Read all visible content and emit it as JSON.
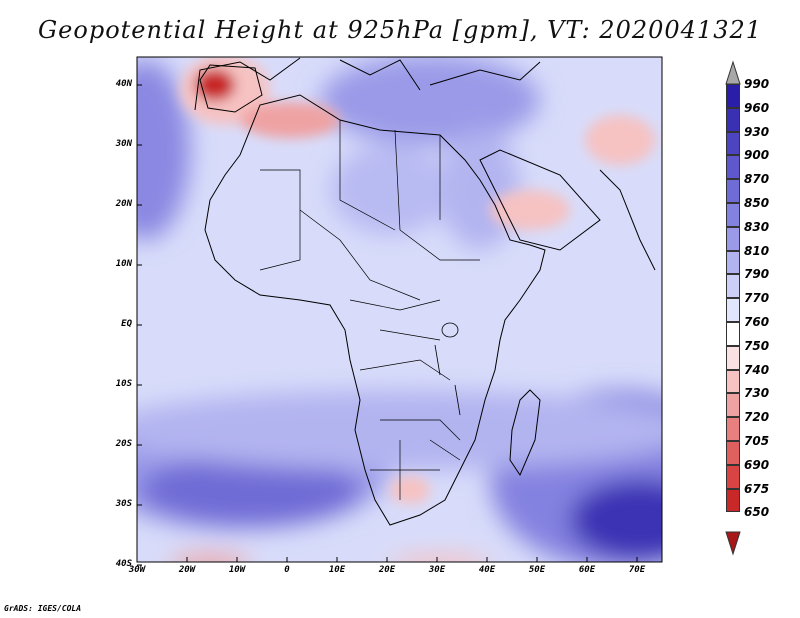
{
  "title": "Geopotential Height at 925hPa [gpm], VT: 2020041321",
  "footer": "GrADS: IGES/COLA",
  "axes": {
    "lat_labels": [
      "40N",
      "30N",
      "20N",
      "10N",
      "EQ",
      "10S",
      "20S",
      "30S",
      "40S"
    ],
    "lon_labels": [
      "30W",
      "20W",
      "10W",
      "0",
      "10E",
      "20E",
      "30E",
      "40E",
      "50E",
      "60E",
      "70E"
    ],
    "lon_range": [
      -30,
      75
    ],
    "lat_range": [
      -40,
      45
    ]
  },
  "colorbar": {
    "levels": [
      "990",
      "960",
      "930",
      "900",
      "870",
      "850",
      "830",
      "810",
      "790",
      "770",
      "760",
      "750",
      "740",
      "730",
      "720",
      "705",
      "690",
      "675",
      "650"
    ],
    "colors": [
      "#1a0a96",
      "#2a1ea8",
      "#3a30b4",
      "#4c44c0",
      "#5e58cc",
      "#706cd6",
      "#8482e0",
      "#9a9ae8",
      "#b2b4f0",
      "#ccd0f7",
      "#e2e6fc",
      "#ffffff",
      "#fbe2e2",
      "#f6c2c2",
      "#efa2a2",
      "#e88080",
      "#e06060",
      "#d84444",
      "#c82828",
      "#a81818"
    ]
  },
  "map": {
    "background_level": "790",
    "features": [
      {
        "name": "iberia-low",
        "level": "650"
      },
      {
        "name": "north-africa-low",
        "level": "730"
      },
      {
        "name": "arabia-low",
        "level": "740"
      },
      {
        "name": "pakistan-low",
        "level": "740"
      },
      {
        "name": "south-atlantic-high",
        "level": "870"
      },
      {
        "name": "south-indian-high",
        "level": "930"
      },
      {
        "name": "north-atlantic-high",
        "level": "850"
      },
      {
        "name": "mediterranean-high",
        "level": "830"
      }
    ]
  }
}
